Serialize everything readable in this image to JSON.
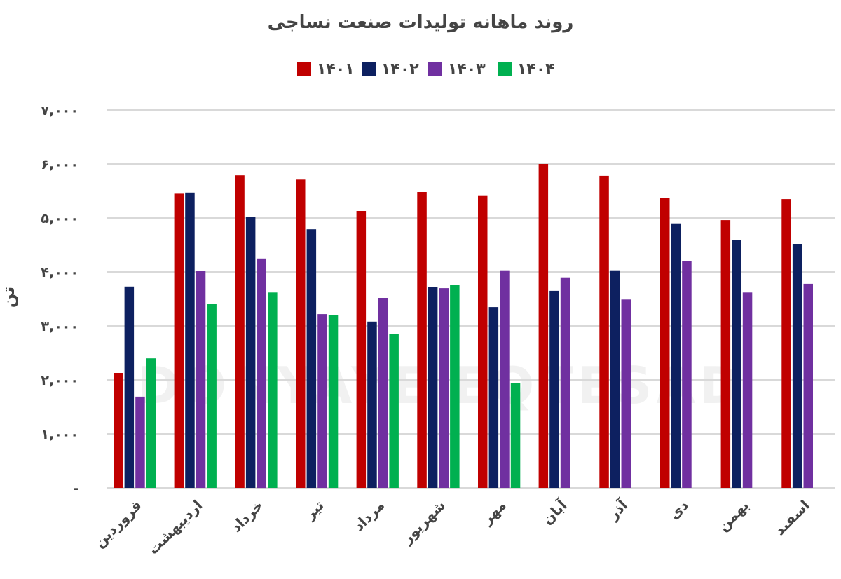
{
  "chart_data": {
    "type": "bar",
    "title": "روند ماهانه تولیدات صنعت نساجی",
    "ylabel": "تن",
    "xlabel": "",
    "ylim": [
      0,
      7000
    ],
    "yticks": [
      0,
      1000,
      2000,
      3000,
      4000,
      5000,
      6000,
      7000
    ],
    "ytick_labels": [
      "-",
      "۱,۰۰۰",
      "۲,۰۰۰",
      "۳,۰۰۰",
      "۴,۰۰۰",
      "۵,۰۰۰",
      "۶,۰۰۰",
      "۷,۰۰۰"
    ],
    "grid": true,
    "legend_position": "top",
    "categories": [
      "فروردین",
      "اردیبهشت",
      "خرداد",
      "تیر",
      "مرداد",
      "شهریور",
      "مهر",
      "آبان",
      "آذر",
      "دی",
      "بهمن",
      "اسفند"
    ],
    "series": [
      {
        "name": "۱۴۰۱",
        "color": "#c00000",
        "values": [
          2130,
          5450,
          5790,
          5710,
          5130,
          5480,
          5420,
          6000,
          5780,
          5370,
          4960,
          5350
        ]
      },
      {
        "name": "۱۴۰۲",
        "color": "#0d2060",
        "values": [
          3730,
          5470,
          5020,
          4790,
          3080,
          3720,
          3350,
          3650,
          4030,
          4900,
          4590,
          4520
        ]
      },
      {
        "name": "۱۴۰۳",
        "color": "#7030a0",
        "values": [
          1690,
          4020,
          4250,
          3220,
          3520,
          3700,
          4030,
          3900,
          3490,
          4200,
          3620,
          3780
        ]
      },
      {
        "name": "۱۴۰۴",
        "color": "#00b050",
        "values": [
          2400,
          3410,
          3620,
          3200,
          2850,
          3760,
          1940,
          null,
          null,
          null,
          null,
          null
        ]
      }
    ]
  },
  "watermark": "DONYAYE EQTESAD"
}
